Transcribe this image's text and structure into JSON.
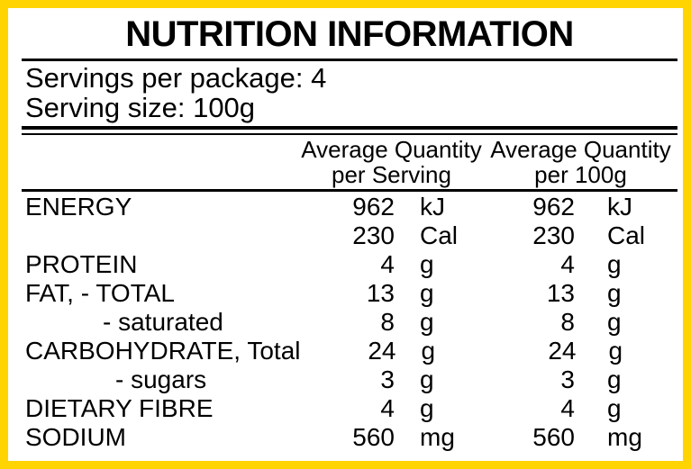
{
  "colors": {
    "frame": "#FFD400",
    "background": "#FFFFFF",
    "text": "#000000",
    "rule": "#000000"
  },
  "header": {
    "title": "NUTRITION INFORMATION"
  },
  "serving_info": {
    "servings_per_package": "Servings per package: 4",
    "serving_size": "Serving size: 100g"
  },
  "table": {
    "column_headers": [
      {
        "line1": "Average Quantity",
        "line2": "per Serving"
      },
      {
        "line1": "Average Quantity",
        "line2": "per 100g"
      }
    ],
    "rows": [
      {
        "label": "ENERGY",
        "serving_value": "962",
        "serving_unit": "kJ",
        "per100g_value": "962",
        "per100g_unit": "kJ"
      },
      {
        "label": "",
        "serving_value": "230",
        "serving_unit": "Cal",
        "per100g_value": "230",
        "per100g_unit": "Cal"
      },
      {
        "label": "PROTEIN",
        "serving_value": "4",
        "serving_unit": "g",
        "per100g_value": "4",
        "per100g_unit": "g"
      },
      {
        "label": "FAT, - TOTAL",
        "serving_value": "13",
        "serving_unit": "g",
        "per100g_value": "13",
        "per100g_unit": "g"
      },
      {
        "label": "- saturated",
        "serving_value": "8",
        "serving_unit": "g",
        "per100g_value": "8",
        "per100g_unit": "g"
      },
      {
        "label": "CARBOHYDRATE, Total",
        "serving_value": "24",
        "serving_unit": "g",
        "per100g_value": "24",
        "per100g_unit": "g"
      },
      {
        "label": "- sugars",
        "serving_value": "3",
        "serving_unit": "g",
        "per100g_value": "3",
        "per100g_unit": "g"
      },
      {
        "label": "DIETARY FIBRE",
        "serving_value": "4",
        "serving_unit": "g",
        "per100g_value": "4",
        "per100g_unit": "g"
      },
      {
        "label": "SODIUM",
        "serving_value": "560",
        "serving_unit": "mg",
        "per100g_value": "560",
        "per100g_unit": "mg"
      }
    ]
  }
}
